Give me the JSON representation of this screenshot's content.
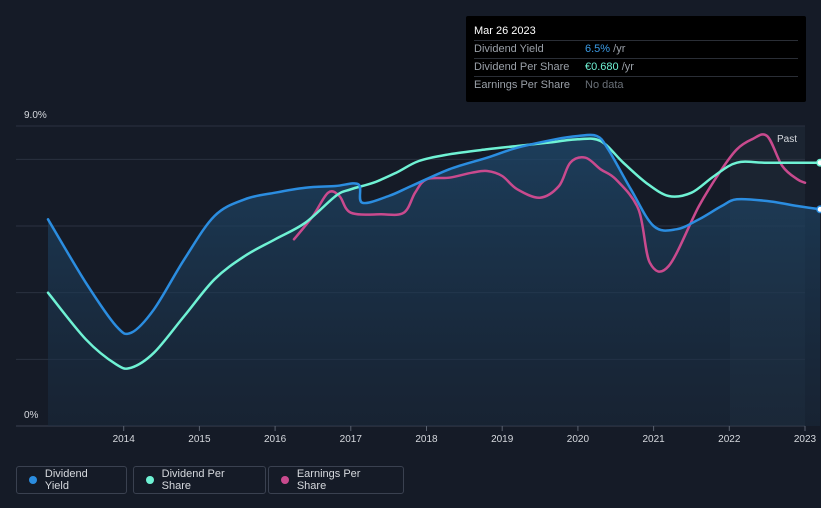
{
  "tooltip": {
    "date": "Mar 26 2023",
    "rows": [
      {
        "label": "Dividend Yield",
        "value": "6.5%",
        "unit": " /yr"
      },
      {
        "label": "Dividend Per Share",
        "value": "€0.680",
        "unit": " /yr"
      },
      {
        "label": "Earnings Per Share",
        "value": "No data",
        "unit": ""
      }
    ]
  },
  "legend": [
    {
      "label": "Dividend Yield",
      "color": "#2b8de0"
    },
    {
      "label": "Dividend Per Share",
      "color": "#6ff2d4"
    },
    {
      "label": "Earnings Per Share",
      "color": "#c94a8e"
    }
  ],
  "past_label": "Past",
  "colors": {
    "background": "#151b27",
    "yield": "#2b8de0",
    "dps": "#6ff2d4",
    "eps": "#c94a8e",
    "grid": "#2a3140"
  },
  "chart_data": {
    "type": "line",
    "ylim": [
      0,
      9.0
    ],
    "ytick_labels": [
      "9.0%",
      "0%"
    ],
    "xlim": [
      2013.0,
      2023.25
    ],
    "xtick_labels": [
      "2014",
      "2015",
      "2016",
      "2017",
      "2018",
      "2019",
      "2020",
      "2021",
      "2022",
      "2023"
    ],
    "grid": true,
    "series": [
      {
        "name": "Dividend Yield",
        "unit": "%",
        "points": [
          [
            2013.0,
            6.2
          ],
          [
            2013.5,
            4.3
          ],
          [
            2013.9,
            3.0
          ],
          [
            2014.1,
            2.8
          ],
          [
            2014.4,
            3.5
          ],
          [
            2014.8,
            5.0
          ],
          [
            2015.2,
            6.3
          ],
          [
            2015.6,
            6.8
          ],
          [
            2016.0,
            7.0
          ],
          [
            2016.4,
            7.15
          ],
          [
            2016.8,
            7.2
          ],
          [
            2017.1,
            7.25
          ],
          [
            2017.15,
            6.7
          ],
          [
            2017.5,
            6.9
          ],
          [
            2017.8,
            7.2
          ],
          [
            2018.3,
            7.7
          ],
          [
            2018.8,
            8.05
          ],
          [
            2019.2,
            8.35
          ],
          [
            2019.7,
            8.6
          ],
          [
            2020.0,
            8.7
          ],
          [
            2020.25,
            8.7
          ],
          [
            2020.4,
            8.3
          ],
          [
            2020.7,
            7.1
          ],
          [
            2021.0,
            6.0
          ],
          [
            2021.3,
            5.9
          ],
          [
            2021.6,
            6.2
          ],
          [
            2021.9,
            6.6
          ],
          [
            2022.1,
            6.8
          ],
          [
            2022.5,
            6.75
          ],
          [
            2022.9,
            6.6
          ],
          [
            2023.2,
            6.5
          ]
        ]
      },
      {
        "name": "Dividend Per Share",
        "unit": "EUR",
        "points": [
          [
            2013.0,
            4.0
          ],
          [
            2013.5,
            2.6
          ],
          [
            2013.9,
            1.85
          ],
          [
            2014.1,
            1.75
          ],
          [
            2014.4,
            2.2
          ],
          [
            2014.8,
            3.3
          ],
          [
            2015.2,
            4.4
          ],
          [
            2015.6,
            5.1
          ],
          [
            2016.0,
            5.6
          ],
          [
            2016.4,
            6.1
          ],
          [
            2016.8,
            6.9
          ],
          [
            2017.0,
            7.1
          ],
          [
            2017.3,
            7.3
          ],
          [
            2017.6,
            7.6
          ],
          [
            2017.9,
            7.95
          ],
          [
            2018.3,
            8.15
          ],
          [
            2018.8,
            8.3
          ],
          [
            2019.2,
            8.4
          ],
          [
            2019.6,
            8.5
          ],
          [
            2020.0,
            8.6
          ],
          [
            2020.3,
            8.55
          ],
          [
            2020.6,
            7.9
          ],
          [
            2020.9,
            7.3
          ],
          [
            2021.2,
            6.9
          ],
          [
            2021.5,
            7.0
          ],
          [
            2021.8,
            7.5
          ],
          [
            2022.1,
            7.9
          ],
          [
            2022.5,
            7.9
          ],
          [
            2023.2,
            7.9
          ]
        ]
      },
      {
        "name": "Earnings Per Share",
        "unit": "EUR",
        "points": [
          [
            2016.25,
            5.6
          ],
          [
            2016.5,
            6.3
          ],
          [
            2016.7,
            7.0
          ],
          [
            2016.85,
            6.9
          ],
          [
            2017.0,
            6.4
          ],
          [
            2017.4,
            6.35
          ],
          [
            2017.7,
            6.4
          ],
          [
            2017.85,
            7.0
          ],
          [
            2018.0,
            7.4
          ],
          [
            2018.3,
            7.45
          ],
          [
            2018.6,
            7.6
          ],
          [
            2018.8,
            7.65
          ],
          [
            2019.0,
            7.5
          ],
          [
            2019.2,
            7.1
          ],
          [
            2019.5,
            6.85
          ],
          [
            2019.75,
            7.2
          ],
          [
            2019.9,
            7.9
          ],
          [
            2020.1,
            8.05
          ],
          [
            2020.3,
            7.7
          ],
          [
            2020.5,
            7.4
          ],
          [
            2020.8,
            6.5
          ],
          [
            2020.95,
            4.9
          ],
          [
            2021.2,
            4.8
          ],
          [
            2021.6,
            6.6
          ],
          [
            2021.9,
            7.7
          ],
          [
            2022.1,
            8.3
          ],
          [
            2022.3,
            8.6
          ],
          [
            2022.5,
            8.7
          ],
          [
            2022.7,
            7.8
          ],
          [
            2022.9,
            7.4
          ],
          [
            2023.0,
            7.3
          ]
        ]
      }
    ]
  }
}
